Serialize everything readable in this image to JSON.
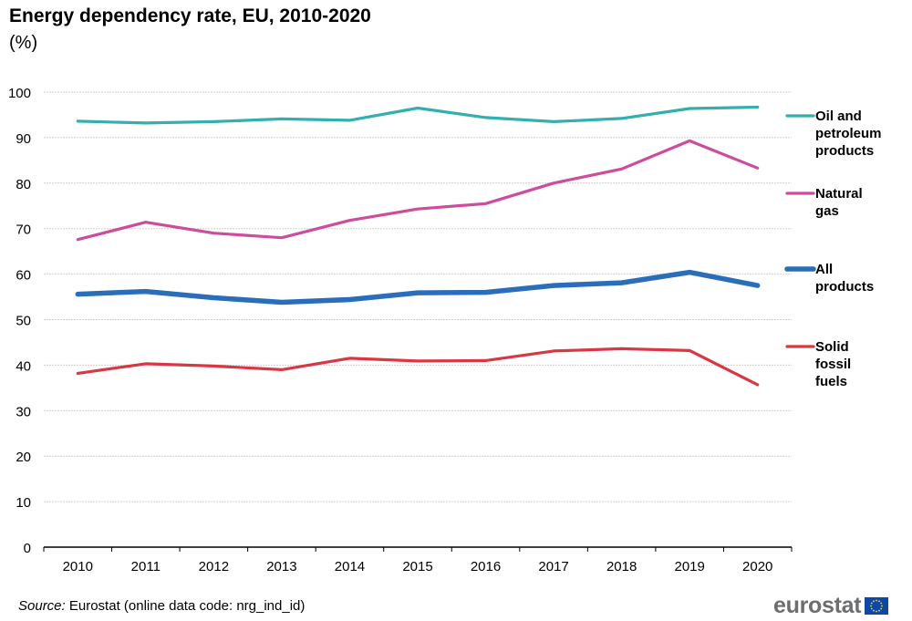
{
  "header": {
    "title": "Energy dependency rate, EU, 2010-2020",
    "subtitle": "(%)"
  },
  "footer": {
    "source_label": "Source:",
    "source_text": " Eurostat (online data code: nrg_ind_id)",
    "logo_text": "eurostat"
  },
  "chart_data": {
    "type": "line",
    "title": "Energy dependency rate, EU, 2010-2020",
    "subtitle": "(%)",
    "xlabel": "",
    "ylabel": "",
    "x": [
      "2010",
      "2011",
      "2012",
      "2013",
      "2014",
      "2015",
      "2016",
      "2017",
      "2018",
      "2019",
      "2020"
    ],
    "ylim": [
      0,
      100
    ],
    "yticks": [
      0,
      10,
      20,
      30,
      40,
      50,
      60,
      70,
      80,
      90,
      100
    ],
    "grid": true,
    "legend_position": "right",
    "series": [
      {
        "name": "Oil and petroleum products",
        "legend_lines": [
          "Oil and",
          "petroleum",
          "products"
        ],
        "color": "#32b0b0",
        "width": "thin",
        "values": [
          93.6,
          93.2,
          93.5,
          94.1,
          93.8,
          96.5,
          94.4,
          93.5,
          94.2,
          96.4,
          96.7
        ]
      },
      {
        "name": "Natural gas",
        "legend_lines": [
          "Natural",
          "gas"
        ],
        "color": "#cd4c9b",
        "width": "thin",
        "values": [
          67.6,
          71.4,
          69.0,
          68.0,
          71.8,
          74.3,
          75.5,
          80.0,
          83.1,
          89.3,
          83.3
        ]
      },
      {
        "name": "All products",
        "legend_lines": [
          "All",
          "products"
        ],
        "color": "#2a6ebb",
        "width": "thick",
        "values": [
          55.6,
          56.2,
          54.8,
          53.8,
          54.4,
          55.9,
          56.0,
          57.5,
          58.1,
          60.4,
          57.5
        ]
      },
      {
        "name": "Solid fossil fuels",
        "legend_lines": [
          "Solid",
          "fossil",
          "fuels"
        ],
        "color": "#d93843",
        "width": "thin",
        "values": [
          38.2,
          40.3,
          39.8,
          39.0,
          41.5,
          40.9,
          41.0,
          43.1,
          43.6,
          43.2,
          35.7
        ]
      }
    ]
  }
}
